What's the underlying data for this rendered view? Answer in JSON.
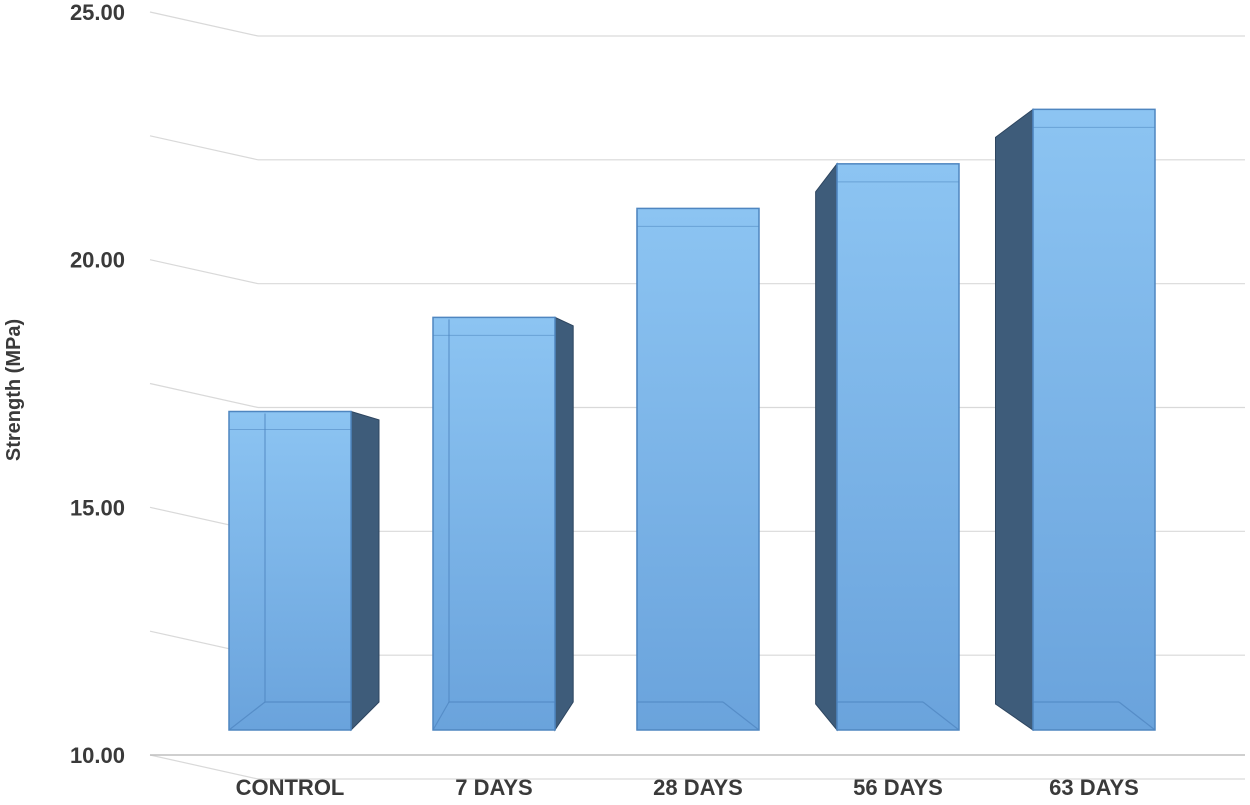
{
  "chart_data": {
    "type": "bar",
    "categories": [
      "CONTROL",
      "7 DAYS",
      "28 DAYS",
      "56 DAYS",
      "63 DAYS"
    ],
    "values": [
      17.5,
      19.4,
      21.6,
      22.5,
      23.6
    ],
    "title": "",
    "xlabel": "",
    "ylabel": "Strength (MPa)",
    "ylim": [
      10,
      25
    ],
    "yticks": [
      "10.00",
      "15.00",
      "20.00",
      "25.00"
    ],
    "grid": true,
    "legend": "none",
    "style": "3d"
  },
  "colors": {
    "bar_front": "#6fa8e0",
    "bar_front_light": "#8cc4f2",
    "bar_side": "#3e5c7a",
    "grid": "#d9d9d9",
    "axis": "#bfbfbf",
    "text": "#3a3a3a"
  }
}
